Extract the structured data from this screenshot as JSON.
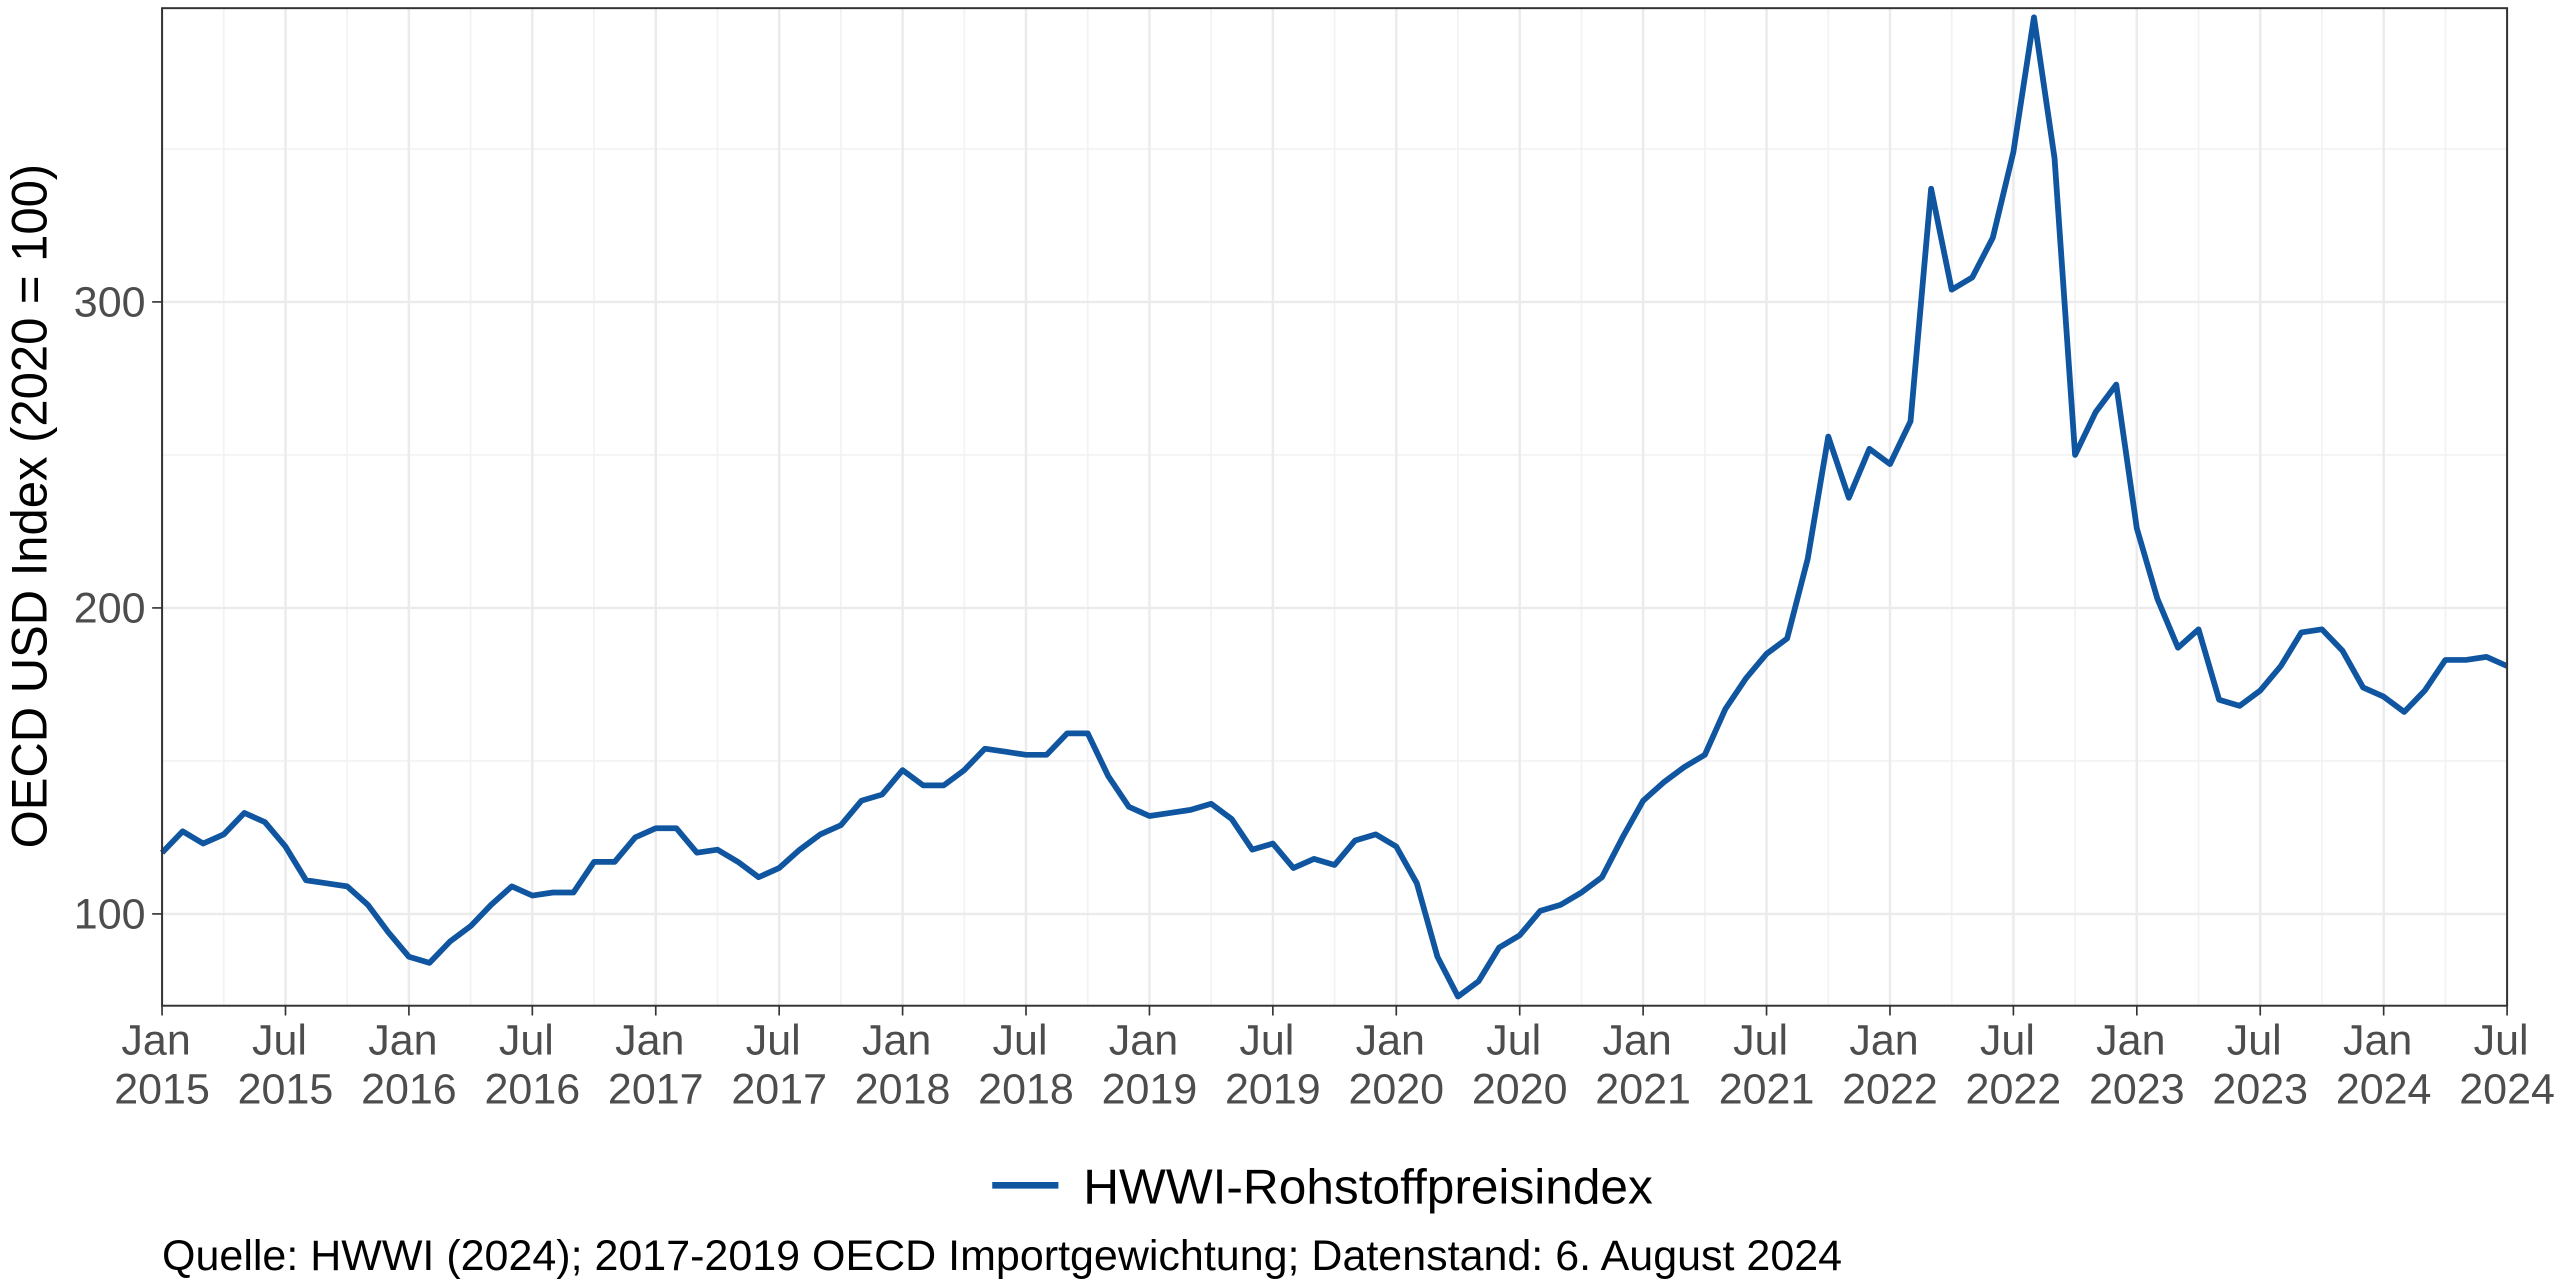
{
  "chart_data": {
    "type": "line",
    "y_label": "OECD USD Index (2020 = 100)",
    "caption": "Quelle: HWWI (2024); 2017-2019 OECD Importgewichtung; Datenstand: 6. August 2024",
    "x": [
      "2015-01",
      "2015-02",
      "2015-03",
      "2015-04",
      "2015-05",
      "2015-06",
      "2015-07",
      "2015-08",
      "2015-09",
      "2015-10",
      "2015-11",
      "2015-12",
      "2016-01",
      "2016-02",
      "2016-03",
      "2016-04",
      "2016-05",
      "2016-06",
      "2016-07",
      "2016-08",
      "2016-09",
      "2016-10",
      "2016-11",
      "2016-12",
      "2017-01",
      "2017-02",
      "2017-03",
      "2017-04",
      "2017-05",
      "2017-06",
      "2017-07",
      "2017-08",
      "2017-09",
      "2017-10",
      "2017-11",
      "2017-12",
      "2018-01",
      "2018-02",
      "2018-03",
      "2018-04",
      "2018-05",
      "2018-06",
      "2018-07",
      "2018-08",
      "2018-09",
      "2018-10",
      "2018-11",
      "2018-12",
      "2019-01",
      "2019-02",
      "2019-03",
      "2019-04",
      "2019-05",
      "2019-06",
      "2019-07",
      "2019-08",
      "2019-09",
      "2019-10",
      "2019-11",
      "2019-12",
      "2020-01",
      "2020-02",
      "2020-03",
      "2020-04",
      "2020-05",
      "2020-06",
      "2020-07",
      "2020-08",
      "2020-09",
      "2020-10",
      "2020-11",
      "2020-12",
      "2021-01",
      "2021-02",
      "2021-03",
      "2021-04",
      "2021-05",
      "2021-06",
      "2021-07",
      "2021-08",
      "2021-09",
      "2021-10",
      "2021-11",
      "2021-12",
      "2022-01",
      "2022-02",
      "2022-03",
      "2022-04",
      "2022-05",
      "2022-06",
      "2022-07",
      "2022-08",
      "2022-09",
      "2022-10",
      "2022-11",
      "2022-12",
      "2023-01",
      "2023-02",
      "2023-03",
      "2023-04",
      "2023-05",
      "2023-06",
      "2023-07",
      "2023-08",
      "2023-09",
      "2023-10",
      "2023-11",
      "2023-12",
      "2024-01",
      "2024-02",
      "2024-03",
      "2024-04",
      "2024-05",
      "2024-06",
      "2024-07"
    ],
    "series": [
      {
        "name": "HWWI-Rohstoffpreisindex",
        "color": "#0f55a0",
        "values": [
          120,
          127,
          123,
          126,
          133,
          130,
          122,
          111,
          110,
          109,
          103,
          94,
          86,
          84,
          91,
          96,
          103,
          109,
          106,
          107,
          107,
          117,
          117,
          125,
          128,
          128,
          120,
          121,
          117,
          112,
          115,
          121,
          126,
          129,
          137,
          139,
          147,
          142,
          142,
          147,
          154,
          153,
          152,
          152,
          159,
          159,
          145,
          135,
          132,
          133,
          134,
          136,
          131,
          121,
          123,
          115,
          118,
          116,
          124,
          126,
          122,
          110,
          86,
          73,
          78,
          89,
          93,
          101,
          103,
          107,
          112,
          125,
          137,
          143,
          148,
          152,
          167,
          177,
          185,
          190,
          216,
          256,
          236,
          252,
          247,
          261,
          337,
          304,
          308,
          321,
          349,
          393,
          347,
          250,
          264,
          273,
          226,
          203,
          187,
          193,
          170,
          168,
          173,
          181,
          192,
          193,
          186,
          174,
          171,
          166,
          173,
          183,
          183,
          184,
          181
        ]
      }
    ],
    "xlim": [
      "2015-01",
      "2024-07"
    ],
    "xticks": [
      {
        "value": "2015-01",
        "label": "Jan 2015"
      },
      {
        "value": "2015-07",
        "label": "Jul 2015"
      },
      {
        "value": "2016-01",
        "label": "Jan 2016"
      },
      {
        "value": "2016-07",
        "label": "Jul 2016"
      },
      {
        "value": "2017-01",
        "label": "Jan 2017"
      },
      {
        "value": "2017-07",
        "label": "Jul 2017"
      },
      {
        "value": "2018-01",
        "label": "Jan 2018"
      },
      {
        "value": "2018-07",
        "label": "Jul 2018"
      },
      {
        "value": "2019-01",
        "label": "Jan 2019"
      },
      {
        "value": "2019-07",
        "label": "Jul 2019"
      },
      {
        "value": "2020-01",
        "label": "Jan 2020"
      },
      {
        "value": "2020-07",
        "label": "Jul 2020"
      },
      {
        "value": "2021-01",
        "label": "Jan 2021"
      },
      {
        "value": "2021-07",
        "label": "Jul 2021"
      },
      {
        "value": "2022-01",
        "label": "Jan 2022"
      },
      {
        "value": "2022-07",
        "label": "Jul 2022"
      },
      {
        "value": "2023-01",
        "label": "Jan 2023"
      },
      {
        "value": "2023-07",
        "label": "Jul 2023"
      },
      {
        "value": "2024-01",
        "label": "Jan 2024"
      },
      {
        "value": "2024-07",
        "label": "Jul 2024"
      }
    ],
    "ylim": [
      70,
      396
    ],
    "yticks": [
      100,
      200,
      300
    ],
    "grid": true,
    "minor_grid": true,
    "legend": "bottom"
  }
}
